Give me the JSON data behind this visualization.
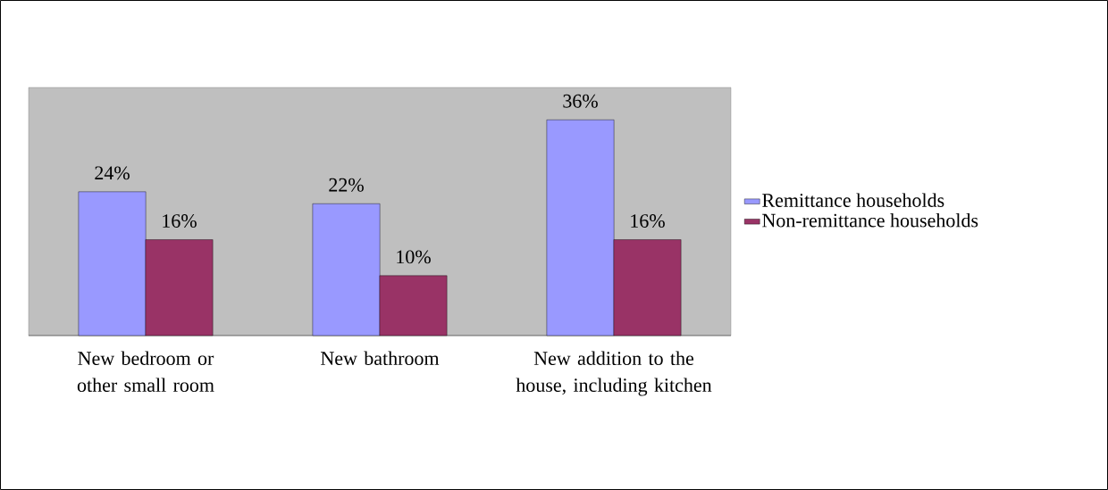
{
  "chart_data": {
    "type": "bar",
    "categories": [
      "New bedroom or other small room",
      "New bathroom",
      "New addition to the house, including kitchen"
    ],
    "series": [
      {
        "name": "Remittance households",
        "color": "#9999ff",
        "values": [
          24,
          22,
          36
        ],
        "value_labels": [
          "24%",
          "22%",
          "36%"
        ]
      },
      {
        "name": "Non-remittance households",
        "color": "#993366",
        "values": [
          16,
          10,
          16
        ],
        "value_labels": [
          "16%",
          "10%",
          "16%"
        ]
      }
    ],
    "legend": "right"
  }
}
